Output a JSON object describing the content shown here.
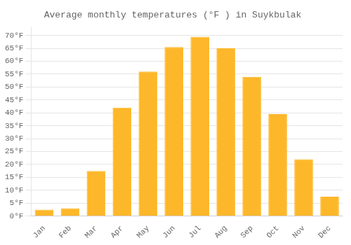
{
  "chart_data": {
    "type": "bar",
    "title": "Average monthly temperatures (°F ) in Suykbulak",
    "categories": [
      "Jan",
      "Feb",
      "Mar",
      "Apr",
      "May",
      "Jun",
      "Jul",
      "Aug",
      "Sep",
      "Oct",
      "Nov",
      "Dec"
    ],
    "values": [
      2.5,
      3.0,
      17.5,
      42.0,
      56.0,
      65.5,
      69.5,
      65.0,
      54.0,
      39.5,
      22.0,
      7.5
    ],
    "color": "#FDB72A",
    "ylim": [
      0,
      73
    ],
    "yticks": [
      {
        "value": 0,
        "label": "0°F"
      },
      {
        "value": 5,
        "label": "5°F"
      },
      {
        "value": 10,
        "label": "10°F"
      },
      {
        "value": 15,
        "label": "15°F"
      },
      {
        "value": 20,
        "label": "20°F"
      },
      {
        "value": 25,
        "label": "25°F"
      },
      {
        "value": 30,
        "label": "30°F"
      },
      {
        "value": 35,
        "label": "35°F"
      },
      {
        "value": 40,
        "label": "40°F"
      },
      {
        "value": 45,
        "label": "45°F"
      },
      {
        "value": 50,
        "label": "50°F"
      },
      {
        "value": 55,
        "label": "55°F"
      },
      {
        "value": 60,
        "label": "60°F"
      },
      {
        "value": 65,
        "label": "65°F"
      },
      {
        "value": 70,
        "label": "70°F"
      }
    ],
    "grid": true
  }
}
